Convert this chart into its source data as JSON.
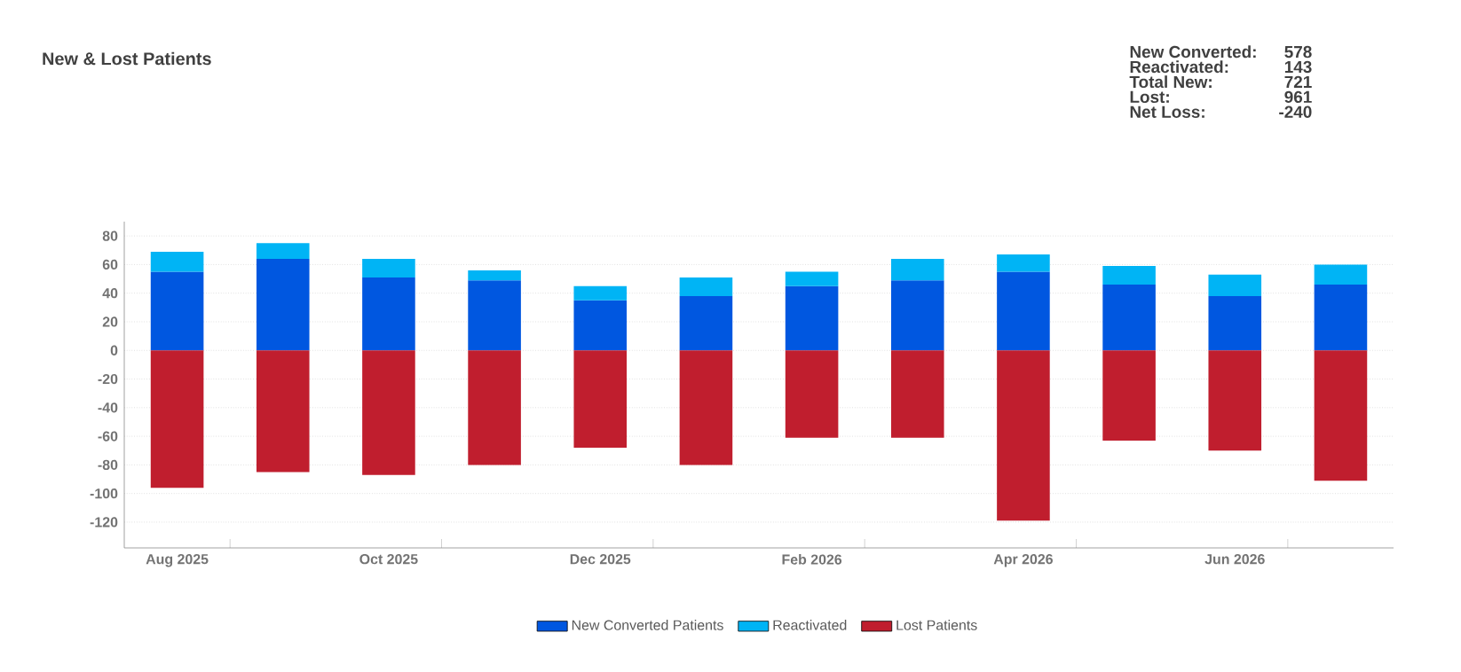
{
  "chart_data": {
    "type": "bar",
    "title": "New & Lost Patients",
    "stacked": true,
    "grid": "y",
    "legend": "bottom",
    "categories": [
      "Aug 2025",
      null,
      "Oct 2025",
      null,
      "Dec 2025",
      null,
      "Feb 2026",
      null,
      "Apr 2026",
      null,
      "Jun 2026",
      null
    ],
    "series": [
      {
        "name": "New Converted Patients",
        "color": "#0057e0",
        "values": [
          55,
          64,
          51,
          49,
          35,
          38,
          45,
          49,
          55,
          46,
          38,
          46
        ]
      },
      {
        "name": "Reactivated",
        "color": "#00b4f5",
        "values": [
          14,
          11,
          13,
          7,
          10,
          13,
          10,
          15,
          12,
          13,
          15,
          14
        ]
      },
      {
        "name": "Lost Patients",
        "color": "#c01e2e",
        "values": [
          -96,
          -85,
          -87,
          -80,
          -68,
          -80,
          -61,
          -61,
          -119,
          -63,
          -70,
          -91
        ]
      }
    ],
    "ylim": [
      -138,
      90
    ],
    "yticks": [
      -120,
      -100,
      -80,
      -60,
      -40,
      -20,
      0,
      20,
      40,
      60,
      80
    ],
    "annotations": [
      "New Converted:",
      "578",
      "Reactivated:",
      "143",
      "Total New:",
      "721",
      "Lost:",
      "961",
      "Net Loss:",
      "-240"
    ]
  }
}
